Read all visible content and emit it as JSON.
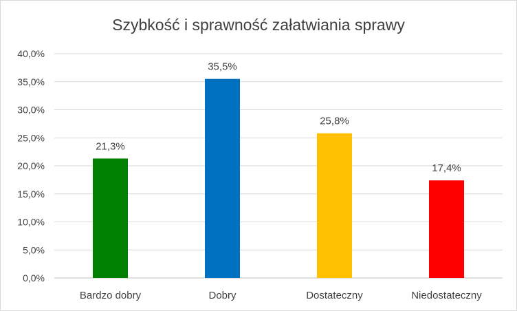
{
  "chart_data": {
    "type": "bar",
    "title": "Szybkość i sprawność załatwiania sprawy",
    "xlabel": "",
    "ylabel": "",
    "categories": [
      "Bardzo dobry",
      "Dobry",
      "Dostateczny",
      "Niedostateczny"
    ],
    "values": [
      21.3,
      35.5,
      25.8,
      17.4
    ],
    "data_labels": [
      "21,3%",
      "35,5%",
      "25,8%",
      "17,4%"
    ],
    "colors": [
      "#008000",
      "#0070C0",
      "#FFC000",
      "#FF0000"
    ],
    "ylim": [
      0,
      40
    ],
    "yticks": [
      0,
      5,
      10,
      15,
      20,
      25,
      30,
      35,
      40
    ],
    "ytick_labels": [
      "0,0%",
      "5,0%",
      "10,0%",
      "15,0%",
      "20,0%",
      "25,0%",
      "30,0%",
      "35,0%",
      "40,0%"
    ],
    "grid": true,
    "legend": "none"
  }
}
